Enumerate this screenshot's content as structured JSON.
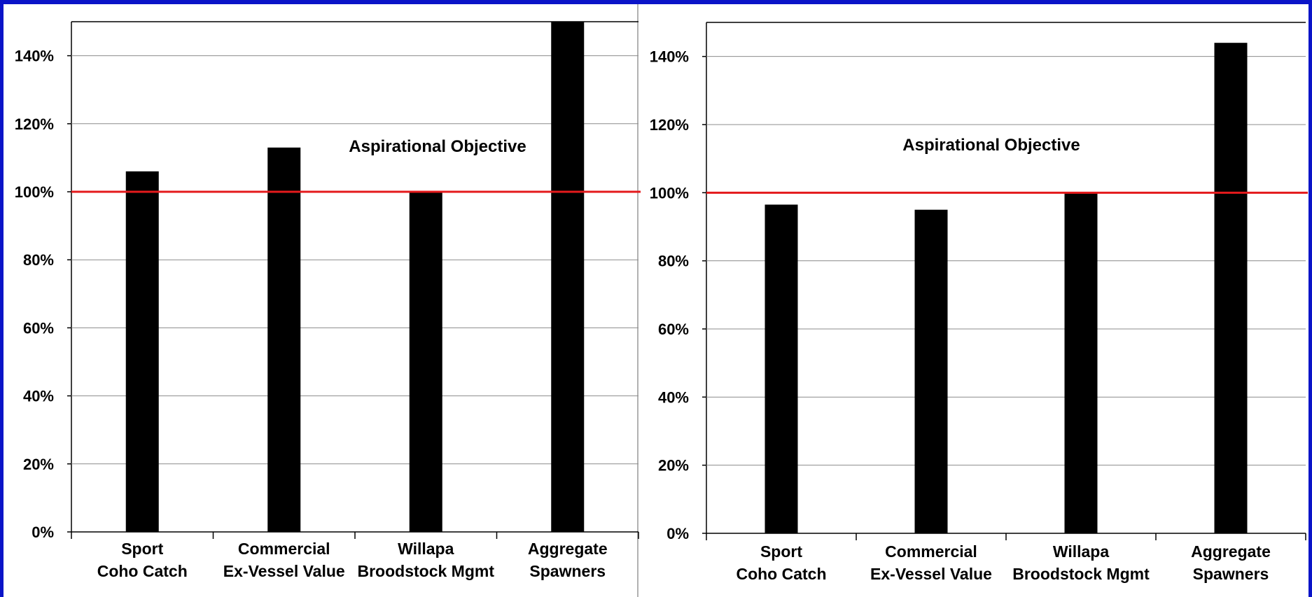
{
  "chart_data": [
    {
      "type": "bar",
      "categories": [
        [
          "Sport",
          "Coho Catch"
        ],
        [
          "Commercial",
          "Ex-Vessel Value"
        ],
        [
          "Willapa",
          "Broodstock Mgmt"
        ],
        [
          "Aggregate",
          "Spawners"
        ]
      ],
      "values": [
        106,
        113,
        100,
        150
      ],
      "ylim": [
        0,
        150
      ],
      "yticks": [
        "0%",
        "20%",
        "40%",
        "60%",
        "80%",
        "100%",
        "120%",
        "140%"
      ],
      "ytick_values": [
        0,
        20,
        40,
        60,
        80,
        100,
        120,
        140
      ],
      "grid": true,
      "reference_line": {
        "value": 100,
        "color": "#e41a1c"
      },
      "annotation": "Aspirational Objective",
      "bar_color": "#000000"
    },
    {
      "type": "bar",
      "categories": [
        [
          "Sport",
          "Coho Catch"
        ],
        [
          "Commercial",
          "Ex-Vessel Value"
        ],
        [
          "Willapa",
          "Broodstock Mgmt"
        ],
        [
          "Aggregate",
          "Spawners"
        ]
      ],
      "values": [
        96.5,
        95,
        100,
        144
      ],
      "ylim": [
        0,
        150
      ],
      "yticks": [
        "0%",
        "20%",
        "40%",
        "60%",
        "80%",
        "100%",
        "120%",
        "140%"
      ],
      "ytick_values": [
        0,
        20,
        40,
        60,
        80,
        100,
        120,
        140
      ],
      "grid": true,
      "reference_line": {
        "value": 100,
        "color": "#e41a1c"
      },
      "annotation": "Aspirational Objective",
      "bar_color": "#000000"
    }
  ],
  "colors": {
    "background_border": "#0a14c8",
    "plot_background": "#ffffff",
    "divider": "#999999"
  }
}
